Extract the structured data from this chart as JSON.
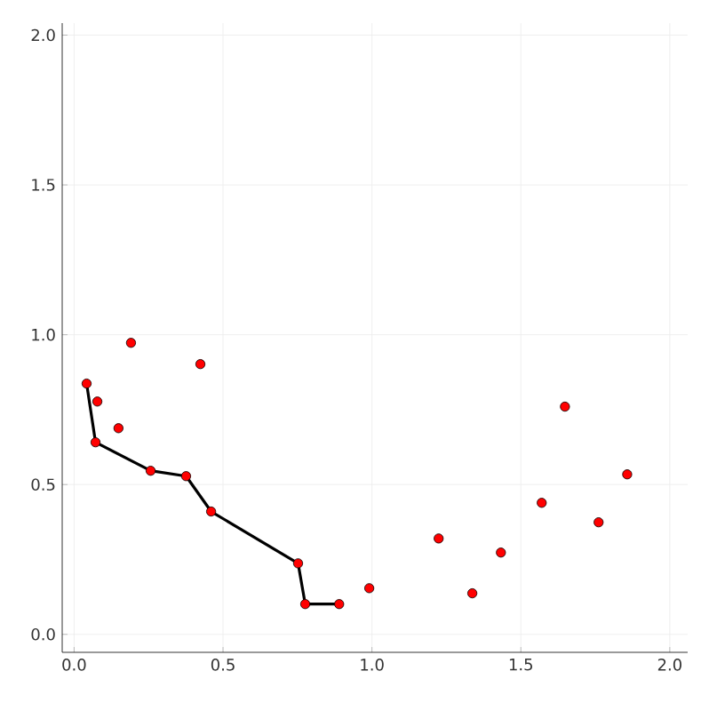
{
  "chart_data": {
    "type": "scatter",
    "xlim": [
      -0.04,
      2.06
    ],
    "ylim": [
      -0.06,
      2.04
    ],
    "xticks": [
      {
        "value": 0,
        "label": "0.0"
      },
      {
        "value": 0.5,
        "label": "0.5"
      },
      {
        "value": 1,
        "label": "1.0"
      },
      {
        "value": 1.5,
        "label": "1.5"
      },
      {
        "value": 2,
        "label": "2.0"
      }
    ],
    "yticks": [
      {
        "value": 0,
        "label": "0.0"
      },
      {
        "value": 0.5,
        "label": "0.5"
      },
      {
        "value": 1,
        "label": "1.0"
      },
      {
        "value": 1.5,
        "label": "1.5"
      },
      {
        "value": 2,
        "label": "2.0"
      }
    ],
    "grid": true,
    "series": [
      {
        "type": "line",
        "color": "#000000",
        "marker": "none",
        "x": [
          0.042,
          0.072,
          0.257,
          0.376,
          0.46,
          0.752,
          0.776,
          0.89
        ],
        "values": [
          0.837,
          0.641,
          0.546,
          0.528,
          0.41,
          0.237,
          0.101,
          0.101
        ]
      },
      {
        "color": "#ff0000",
        "marker": "circle",
        "x": [
          0.042,
          0.078,
          0.072,
          0.149,
          0.191,
          0.257,
          0.376,
          0.424,
          0.46,
          0.752,
          0.776,
          0.89,
          0.991,
          1.224,
          1.337,
          1.433,
          1.57,
          1.648,
          1.761,
          1.857
        ],
        "values": [
          0.837,
          0.777,
          0.641,
          0.688,
          0.973,
          0.546,
          0.528,
          0.902,
          0.41,
          0.237,
          0.101,
          0.101,
          0.154,
          0.32,
          0.137,
          0.273,
          0.439,
          0.76,
          0.374,
          0.534
        ]
      }
    ]
  }
}
